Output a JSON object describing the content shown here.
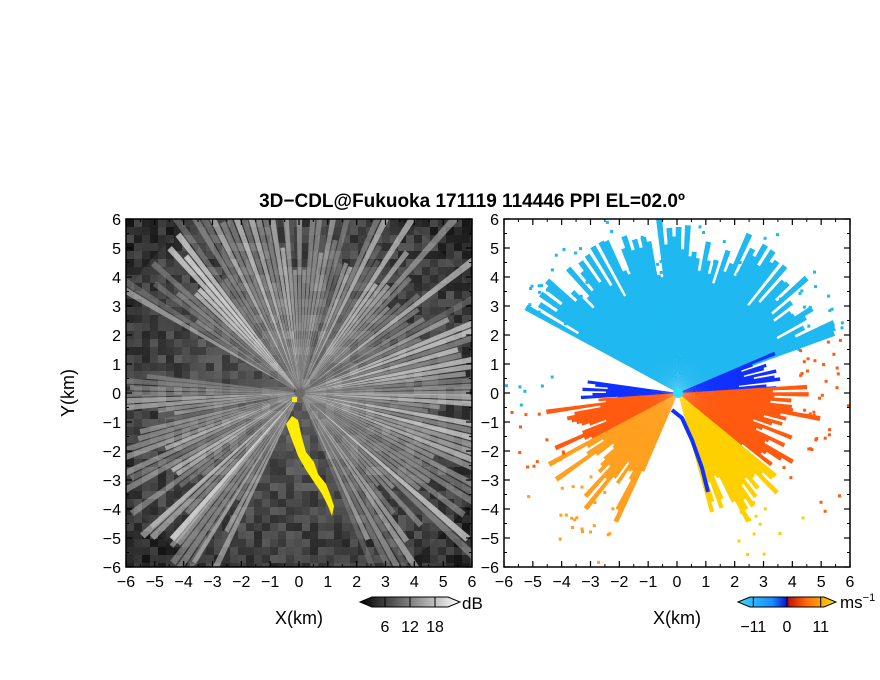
{
  "title": "3D−CDL@Fukuoka 171119 114446 PPI EL=02.0º",
  "chart_data": [
    {
      "type": "heatmap",
      "name": "reflectivity-ppi",
      "xlabel": "X(km)",
      "ylabel": "Y(km)",
      "xlim": [
        -6,
        6
      ],
      "ylim": [
        -6,
        6
      ],
      "x_ticks": [
        "−6",
        "−5",
        "−4",
        "−3",
        "−2",
        "−1",
        "0",
        "1",
        "2",
        "3",
        "4",
        "5",
        "6"
      ],
      "y_ticks": [
        "6",
        "5",
        "4",
        "3",
        "2",
        "1",
        "0",
        "−1",
        "−2",
        "−3",
        "−4",
        "−5",
        "−6"
      ],
      "colorbar": {
        "unit": "dB",
        "tick_labels": [
          "6",
          "12",
          "18"
        ],
        "tick_values": [
          6,
          12,
          18
        ],
        "range": [
          0,
          24
        ]
      },
      "colors": {
        "background": "#1a1a1a",
        "ray": "#e8e8e8",
        "overlay": "#ffee00"
      }
    },
    {
      "type": "heatmap",
      "name": "doppler-velocity-ppi",
      "xlabel": "X(km)",
      "ylabel": "",
      "xlim": [
        -6,
        6
      ],
      "ylim": [
        -6,
        6
      ],
      "x_ticks": [
        "−6",
        "−5",
        "−4",
        "−3",
        "−2",
        "−1",
        "0",
        "1",
        "2",
        "3",
        "4",
        "5",
        "6"
      ],
      "y_ticks": [
        "6",
        "5",
        "4",
        "3",
        "2",
        "1",
        "0",
        "−1",
        "−2",
        "−3",
        "−4",
        "−5",
        "−6"
      ],
      "colorbar": {
        "unit": "ms",
        "unit_superscript": "−1",
        "tick_labels": [
          "−11",
          "0",
          "11"
        ],
        "tick_values": [
          -11,
          0,
          11
        ],
        "range": [
          -16,
          16
        ]
      },
      "colors": {
        "toward": "#1fb8f0",
        "toward_strong": "#1030ff",
        "away": "#ff5a10",
        "away_weak": "#ffd000"
      }
    }
  ]
}
